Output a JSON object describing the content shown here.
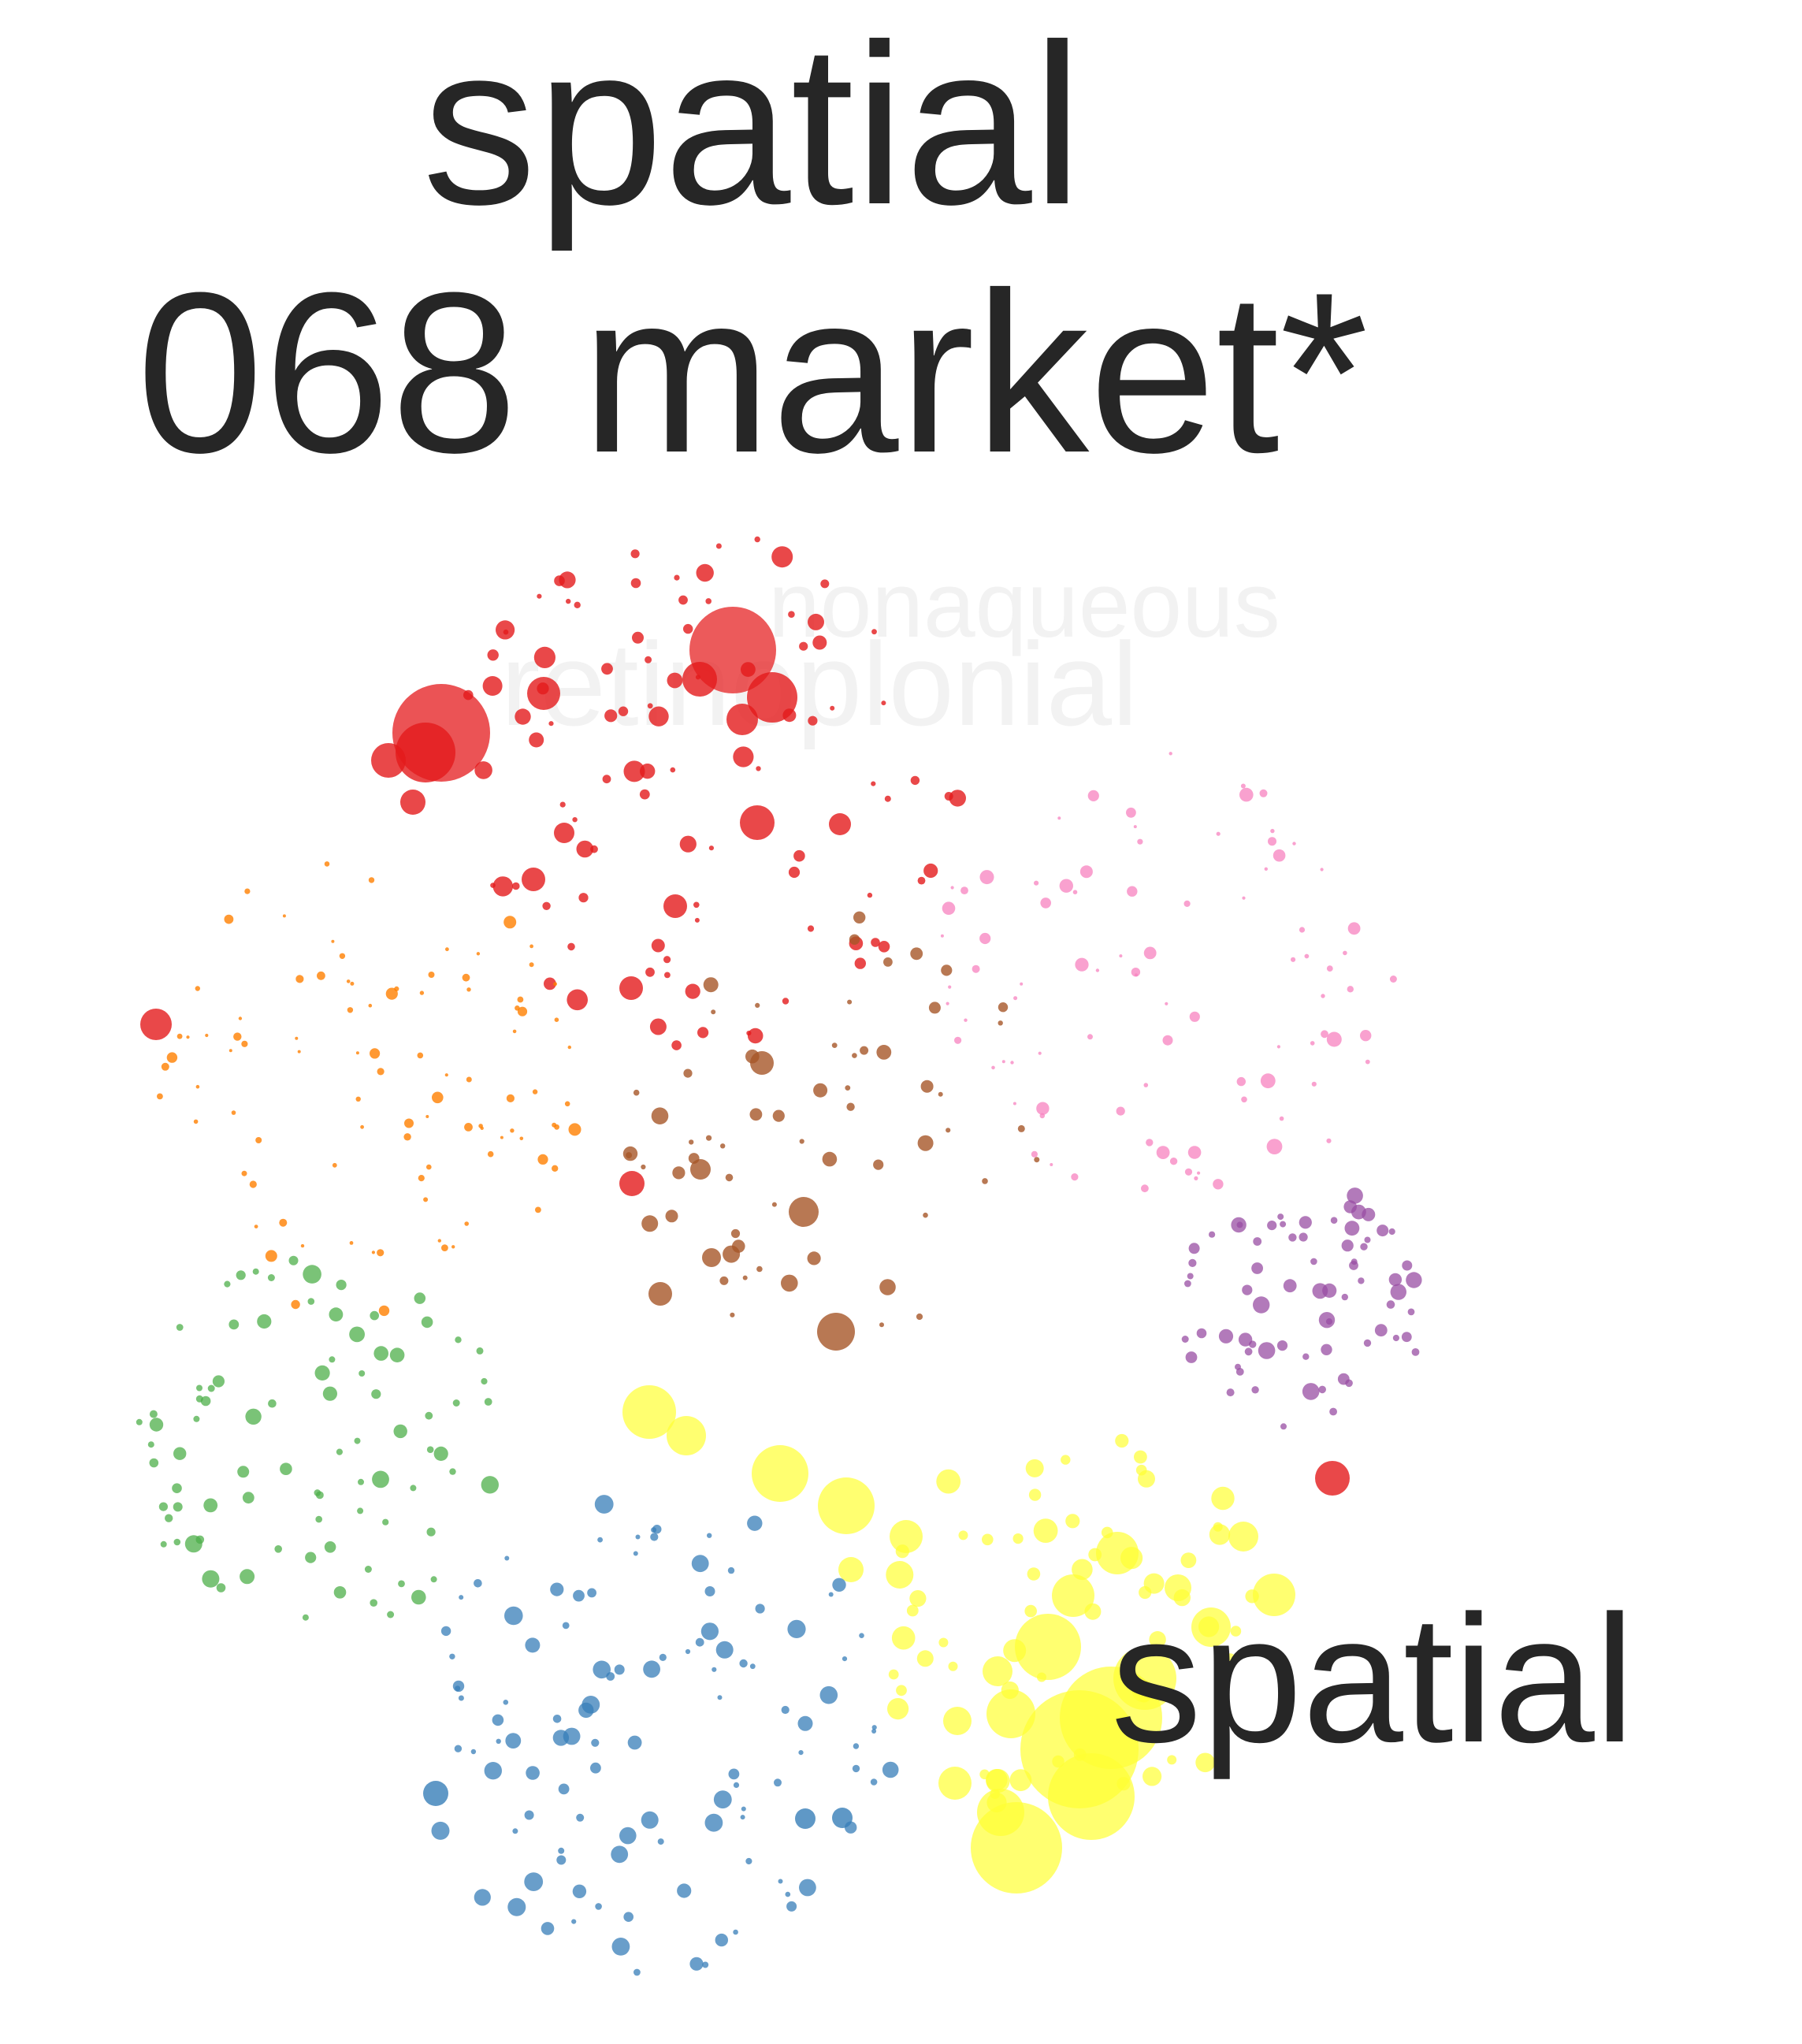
{
  "title": {
    "line1": "spatial",
    "line2": "068 market*"
  },
  "ghost_labels": [
    "nonaqueous",
    "retinoplonial"
  ],
  "node_label": "spatial",
  "colors": {
    "red": "#e41a1c",
    "orange": "#ff7f00",
    "green": "#4daf4a",
    "blue": "#377eb8",
    "yellow": "#ffff33",
    "brown": "#a65628",
    "pink": "#f781bf",
    "purple": "#984ea3",
    "text": "#262626"
  }
}
